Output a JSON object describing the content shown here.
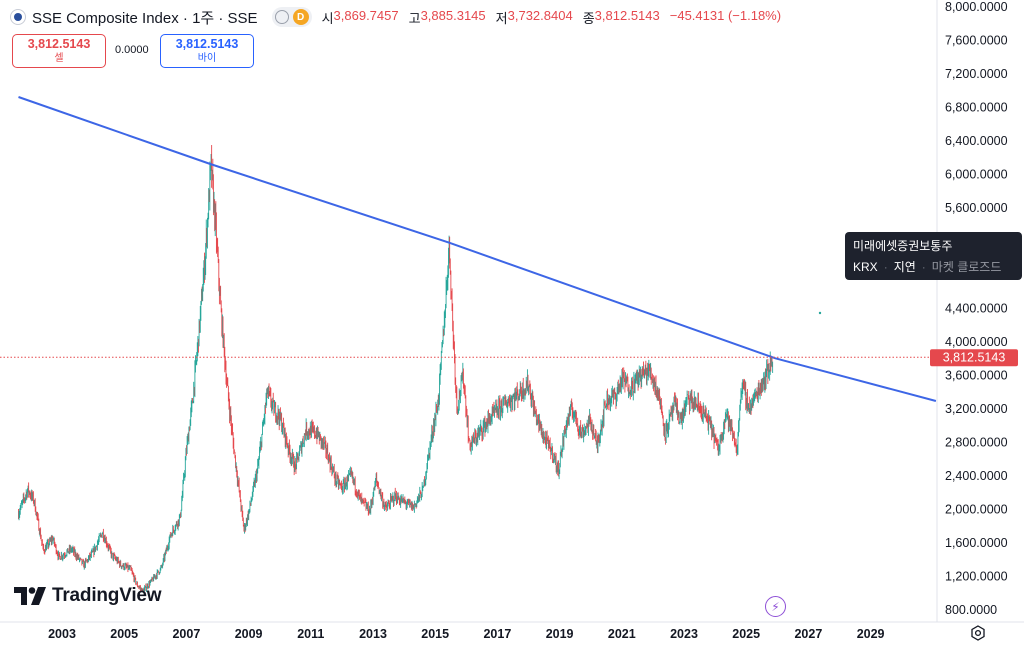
{
  "header": {
    "title": "SSE Composite Index · 1주 · SSE",
    "pill_badge": "D",
    "open_label": "시",
    "open": "3,869.7457",
    "high_label": "고",
    "high": "3,885.3145",
    "low_label": "저",
    "low": "3,732.8404",
    "close_label": "종",
    "close": "3,812.5143",
    "change": "−45.4131 (−1.18%)"
  },
  "trade": {
    "sell_price": "3,812.5143",
    "sell_label": "셀",
    "spread": "0.0000",
    "buy_price": "3,812.5143",
    "buy_label": "바이"
  },
  "tooltip": {
    "name": "미래에셋증권보통주",
    "exchange": "KRX",
    "delay": "지연",
    "status": "마켓 클로즈드"
  },
  "branding": {
    "logo_text": "TradingView"
  },
  "colors": {
    "up": "#26a69a",
    "down": "#e5484d",
    "trendline": "#3d66e6",
    "accent": "#2962ff"
  },
  "icons": {
    "symbol": "sse-logo-icon",
    "flash": "lightning-icon",
    "settings": "gear-icon"
  },
  "chart_data": {
    "type": "candlestick",
    "interval": "1W",
    "yaxis": {
      "ticks": [
        "8,000.0000",
        "7,600.0000",
        "7,200.0000",
        "6,800.0000",
        "6,400.0000",
        "6,000.0000",
        "5,600.0000",
        "4,400.0000",
        "4,000.0000",
        "3,600.0000",
        "3,200.0000",
        "2,800.0000",
        "2,400.0000",
        "2,000.0000",
        "1,600.0000",
        "1,200.0000",
        "800.0000"
      ],
      "tick_values": [
        8000,
        7600,
        7200,
        6800,
        6400,
        6000,
        5600,
        4400,
        4000,
        3600,
        3200,
        2800,
        2400,
        2000,
        1600,
        1200,
        800
      ]
    },
    "xaxis": {
      "ticks": [
        "2003",
        "2005",
        "2007",
        "2009",
        "2011",
        "2013",
        "2015",
        "2017",
        "2019",
        "2021",
        "2023",
        "2025",
        "2027",
        "2029"
      ],
      "tick_values": [
        2003,
        2005,
        2007,
        2009,
        2011,
        2013,
        2015,
        2017,
        2019,
        2021,
        2023,
        2025,
        2027,
        2029
      ]
    },
    "last_price_label": "3,812.5143",
    "last_price": 3812.5143,
    "trendline": [
      [
        2001.6,
        6920
      ],
      [
        2007.77,
        6120
      ],
      [
        2015.45,
        5180
      ],
      [
        2025.94,
        3800
      ],
      [
        2031.1,
        3290
      ]
    ],
    "price_path": [
      [
        2001.6,
        1950
      ],
      [
        2001.9,
        2230
      ],
      [
        2002.1,
        2100
      ],
      [
        2002.4,
        1500
      ],
      [
        2002.7,
        1650
      ],
      [
        2002.9,
        1420
      ],
      [
        2003.3,
        1520
      ],
      [
        2003.7,
        1330
      ],
      [
        2004.0,
        1480
      ],
      [
        2004.3,
        1720
      ],
      [
        2004.6,
        1450
      ],
      [
        2004.9,
        1330
      ],
      [
        2005.2,
        1280
      ],
      [
        2005.4,
        1100
      ],
      [
        2005.6,
        1020
      ],
      [
        2005.9,
        1150
      ],
      [
        2006.2,
        1300
      ],
      [
        2006.5,
        1700
      ],
      [
        2006.8,
        1900
      ],
      [
        2007.0,
        2700
      ],
      [
        2007.2,
        3300
      ],
      [
        2007.4,
        4100
      ],
      [
        2007.6,
        5000
      ],
      [
        2007.79,
        6100
      ],
      [
        2007.95,
        5300
      ],
      [
        2008.1,
        4400
      ],
      [
        2008.3,
        3500
      ],
      [
        2008.5,
        2800
      ],
      [
        2008.7,
        2200
      ],
      [
        2008.85,
        1750
      ],
      [
        2009.0,
        1950
      ],
      [
        2009.3,
        2500
      ],
      [
        2009.5,
        3100
      ],
      [
        2009.6,
        3400
      ],
      [
        2009.8,
        3200
      ],
      [
        2010.0,
        3100
      ],
      [
        2010.3,
        2700
      ],
      [
        2010.5,
        2500
      ],
      [
        2010.85,
        2950
      ],
      [
        2011.2,
        2900
      ],
      [
        2011.5,
        2700
      ],
      [
        2011.8,
        2350
      ],
      [
        2012.0,
        2250
      ],
      [
        2012.3,
        2400
      ],
      [
        2012.6,
        2100
      ],
      [
        2012.9,
        1980
      ],
      [
        2013.1,
        2350
      ],
      [
        2013.4,
        2000
      ],
      [
        2013.7,
        2150
      ],
      [
        2013.9,
        2100
      ],
      [
        2014.3,
        2020
      ],
      [
        2014.6,
        2220
      ],
      [
        2014.9,
        2900
      ],
      [
        2015.1,
        3300
      ],
      [
        2015.3,
        4300
      ],
      [
        2015.45,
        5160
      ],
      [
        2015.55,
        4300
      ],
      [
        2015.7,
        3200
      ],
      [
        2015.9,
        3600
      ],
      [
        2016.1,
        2750
      ],
      [
        2016.4,
        2900
      ],
      [
        2016.8,
        3100
      ],
      [
        2017.2,
        3250
      ],
      [
        2017.6,
        3350
      ],
      [
        2018.0,
        3500
      ],
      [
        2018.2,
        3150
      ],
      [
        2018.5,
        2850
      ],
      [
        2018.8,
        2650
      ],
      [
        2018.95,
        2450
      ],
      [
        2019.2,
        3000
      ],
      [
        2019.4,
        3200
      ],
      [
        2019.7,
        2900
      ],
      [
        2020.0,
        3050
      ],
      [
        2020.2,
        2750
      ],
      [
        2020.5,
        3300
      ],
      [
        2020.8,
        3350
      ],
      [
        2021.0,
        3550
      ],
      [
        2021.3,
        3450
      ],
      [
        2021.6,
        3600
      ],
      [
        2021.9,
        3650
      ],
      [
        2022.2,
        3350
      ],
      [
        2022.4,
        2900
      ],
      [
        2022.7,
        3250
      ],
      [
        2022.9,
        3050
      ],
      [
        2023.1,
        3300
      ],
      [
        2023.4,
        3250
      ],
      [
        2023.7,
        3100
      ],
      [
        2023.9,
        2950
      ],
      [
        2024.1,
        2700
      ],
      [
        2024.35,
        3150
      ],
      [
        2024.6,
        2850
      ],
      [
        2024.72,
        2700
      ],
      [
        2024.8,
        3350
      ],
      [
        2024.9,
        3450
      ],
      [
        2025.1,
        3200
      ],
      [
        2025.3,
        3350
      ],
      [
        2025.5,
        3500
      ],
      [
        2025.7,
        3650
      ],
      [
        2025.85,
        3810
      ]
    ],
    "ylim": [
      700,
      8080
    ],
    "xlim": [
      2001.5,
      2031.3
    ],
    "grid": false
  }
}
